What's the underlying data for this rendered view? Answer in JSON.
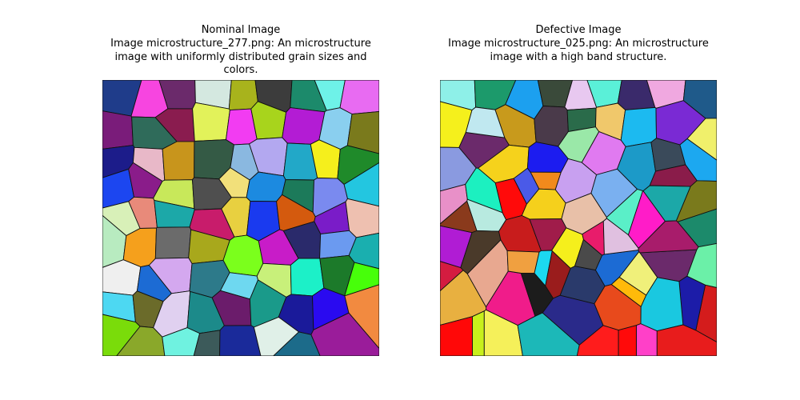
{
  "figure": {
    "panels": [
      {
        "title": "Nominal Image",
        "caption_lines": [
          "Image microstructure_277.png: An microstructure",
          "image with uniformly distributed grain sizes and",
          "colors."
        ],
        "colors": [
          "#1f3c8a",
          "#f745e0",
          "#6b2a6b",
          "#d4e8e0",
          "#a8b31c",
          "#3c3c3c",
          "#1c8a6b",
          "#6ef2e8",
          "#e86bf2",
          "#7a1c7a",
          "#2f6b5a",
          "#8a1c4f",
          "#e2f25a",
          "#f23cf2",
          "#a8d41c",
          "#b31cd4",
          "#8acfef",
          "#7a7a1c",
          "#1c1c8a",
          "#e8b8c8",
          "#c8951c",
          "#345a45",
          "#8ab8e0",
          "#b3a8f0",
          "#22a8c8",
          "#f5ef1c",
          "#1f8a2a",
          "#1c46f0",
          "#8a1c8a",
          "#c8e85a",
          "#4f4f4f",
          "#f2e07a",
          "#1c8ae0",
          "#1c7a5a",
          "#7a8aef",
          "#23c6e0",
          "#d8f0b8",
          "#e88a7a",
          "#1ca8a8",
          "#c81c6b",
          "#e8d040",
          "#1a3aef",
          "#d45a0e",
          "#7a1cc8",
          "#eec0b0",
          "#b8ebc0",
          "#f5a01c",
          "#6b6b6b",
          "#a8a81c",
          "#7bff1c",
          "#c81cc8",
          "#2a2a6b",
          "#6b9af0",
          "#1aafaf",
          "#efefef",
          "#1c6bd4",
          "#d4a8ef",
          "#2d7a8a",
          "#6ed8f0",
          "#c8f07a",
          "#1cf0c8",
          "#1c7a2a",
          "#47ff0a",
          "#4dd8f2",
          "#6b6b2a",
          "#e0d0f0",
          "#1c8a8a",
          "#6b1c6b",
          "#1a9a8a",
          "#1a1a9a",
          "#2a0af0",
          "#f28a40",
          "#7adc0a",
          "#8aa82a",
          "#6ff2e0",
          "#3c5a5a",
          "#1a2a9a",
          "#e0f0e8",
          "#1c6b8a",
          "#9a1c9a"
        ],
        "seed": 277,
        "band": false
      },
      {
        "title": "Defective Image",
        "caption_lines": [
          "Image microstructure_025.png: An microstructure",
          "image with a high band structure."
        ],
        "colors": [
          "#8ef0e8",
          "#1c9a6b",
          "#1ca0ef",
          "#3a4a3a",
          "#e8c8f0",
          "#5af0d8",
          "#3a2a6b",
          "#f0a8e0",
          "#1f5a8a",
          "#f5f01c",
          "#6b2a6b",
          "#c89a1c",
          "#4a3a4a",
          "#2a6b4a",
          "#f0c86b",
          "#1cbaf0",
          "#7a2ad4",
          "#f0f06b",
          "#8a9ae0",
          "#c0e8f0",
          "#f5d21c",
          "#f28a1c",
          "#9ae8a8",
          "#e07af0",
          "#1c9ac8",
          "#3a4a5a",
          "#1ca8f0",
          "#e890c8",
          "#1cf0c0",
          "#4a5ae8",
          "#1c1cf0",
          "#c8a0f0",
          "#7ab0f0",
          "#5aefc8",
          "#8a1c4a",
          "#7a7a1c",
          "#b01cd4",
          "#b8eae0",
          "#ff0a0a",
          "#f5d01c",
          "#e8c0a8",
          "#e81c6b",
          "#ff1cc8",
          "#1ca8a8",
          "#1c8a6b",
          "#8a3a1c",
          "#4a3a2a",
          "#f01c8a",
          "#a01c4a",
          "#f5ef1c",
          "#1c6bd4",
          "#f0f07a",
          "#6b2a6b",
          "#d41c1c",
          "#e8b040",
          "#e8a890",
          "#c81c1c",
          "#1cd8f0",
          "#2a3a6b",
          "#e0c0e0",
          "#ffba0a",
          "#a81c6b",
          "#1c1ca8",
          "#ff0808",
          "#c8f01c",
          "#f0a040",
          "#9a1c1c",
          "#4a4a4a",
          "#e84a1c",
          "#ff40c8",
          "#1ac8e0",
          "#6bf0a8",
          "#d41c40",
          "#f5f05a",
          "#1c1c1c",
          "#1cb8b8",
          "#2a2a8a",
          "#ff1c1c",
          "#ff0a0a",
          "#e81c1c"
        ],
        "seed": 25,
        "band": true
      }
    ]
  }
}
